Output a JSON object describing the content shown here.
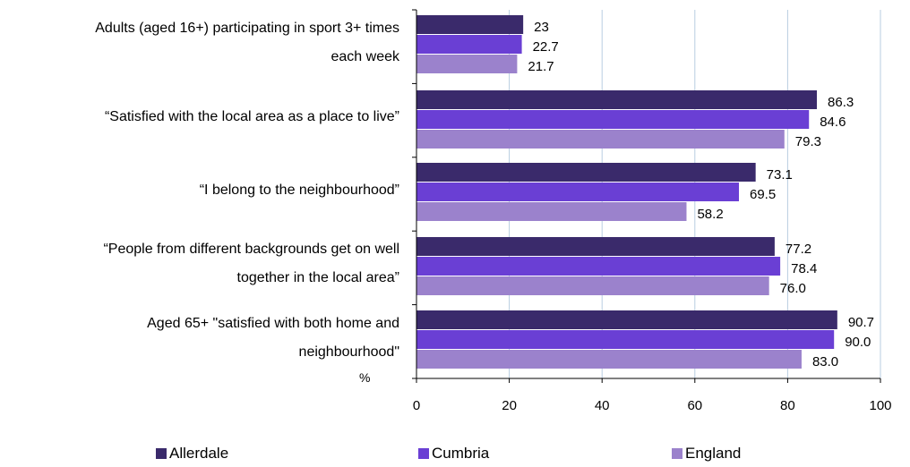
{
  "chart_data": {
    "type": "bar",
    "orientation": "horizontal",
    "unit_label": "%",
    "categories": [
      [
        "Adults (aged 16+) participating in sport 3+ times",
        "each week"
      ],
      [
        "“Satisfied with the local area as a place to live”"
      ],
      [
        "“I belong to the neighbourhood”"
      ],
      [
        "“People from different backgrounds get on well",
        "together in the local area”"
      ],
      [
        "Aged 65+ \"satisfied with both home and",
        "neighbourhood\""
      ]
    ],
    "series": [
      {
        "name": "Allerdale",
        "color": "#3a2a6b",
        "values": [
          23,
          86.3,
          73.1,
          77.2,
          90.7
        ],
        "labels": [
          "23",
          "86.3",
          "73.1",
          "77.2",
          "90.7"
        ]
      },
      {
        "name": "Cumbria",
        "color": "#6a3fd4",
        "values": [
          22.7,
          84.6,
          69.5,
          78.4,
          90.0
        ],
        "labels": [
          "22.7",
          "84.6",
          "69.5",
          "78.4",
          "90.0"
        ]
      },
      {
        "name": "England",
        "color": "#9b82cc",
        "values": [
          21.7,
          79.3,
          58.2,
          76.0,
          83.0
        ],
        "labels": [
          "21.7",
          "79.3",
          "58.2",
          "76.0",
          "83.0"
        ]
      }
    ],
    "xlim": [
      0,
      100
    ],
    "xticks": [
      "0",
      "20",
      "40",
      "60",
      "80",
      "100"
    ],
    "grid": true,
    "legend_position": "bottom"
  }
}
